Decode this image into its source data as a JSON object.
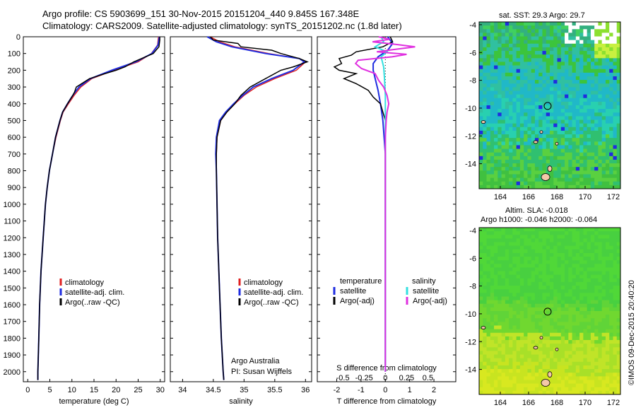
{
  "header": {
    "line1": "Argo profile: CS 5903699_151 30-Nov-2015 20151204_440 9.845S 167.348E",
    "line2": "Climatology: CARS2009. Satellite-adjusted climatology: synTS_20151202.nc (1.8d later)"
  },
  "colors": {
    "climatology": "#e02020",
    "satellite": "#1f2de0",
    "argo": "#000000",
    "sat_s": "#33e0e0",
    "argo_s": "#e030e0"
  },
  "depth_axis": {
    "ticks": [
      "0",
      "100",
      "200",
      "300",
      "400",
      "500",
      "600",
      "700",
      "800",
      "900",
      "1000",
      "1100",
      "1200",
      "1300",
      "1400",
      "1500",
      "1600",
      "1700",
      "1800",
      "1900",
      "2000"
    ]
  },
  "chart_data": [
    {
      "type": "line",
      "id": "temperature",
      "xlabel": "temperature (deg C)",
      "xlim": [
        -1,
        31
      ],
      "ylim": [
        2060,
        0
      ],
      "xticks": [
        "0",
        "5",
        "10",
        "15",
        "20",
        "25",
        "30"
      ],
      "legend": [
        "climatology",
        "satellite-adj. clim.",
        "Argo(..raw -QC)"
      ],
      "series": [
        {
          "name": "climatology",
          "depth": [
            0,
            50,
            100,
            150,
            200,
            250,
            300,
            350,
            400,
            450,
            500,
            600,
            700,
            800,
            900,
            1000,
            1200,
            1400,
            1600,
            1800,
            2000,
            2050
          ],
          "values": [
            29.6,
            29.4,
            28.0,
            25.0,
            19.5,
            14.5,
            12.0,
            10.5,
            9.2,
            8.0,
            7.4,
            6.4,
            5.6,
            4.9,
            4.4,
            4.0,
            3.5,
            3.0,
            2.7,
            2.5,
            2.3,
            2.3
          ]
        },
        {
          "name": "satellite-adj. clim.",
          "depth": [
            0,
            50,
            100,
            150,
            200,
            250,
            300,
            350,
            400,
            450,
            500,
            600,
            700,
            800,
            900,
            1000,
            1200,
            1400,
            1600,
            1800,
            2000,
            2050
          ],
          "values": [
            29.8,
            29.5,
            28.1,
            24.5,
            19.0,
            14.2,
            11.6,
            10.2,
            9.0,
            7.9,
            7.3,
            6.3,
            5.6,
            4.9,
            4.4,
            4.0,
            3.5,
            3.0,
            2.7,
            2.5,
            2.3,
            2.3
          ]
        },
        {
          "name": "Argo(..raw -QC)",
          "depth": [
            0,
            20,
            60,
            100,
            150,
            180,
            200,
            220,
            250,
            300,
            330,
            350,
            400,
            450,
            500,
            600,
            700,
            800,
            900,
            1000,
            1200,
            1400,
            1600,
            1800,
            2000,
            2050
          ],
          "values": [
            29.9,
            29.9,
            29.7,
            28.4,
            24.0,
            22.0,
            20.0,
            17.5,
            14.0,
            11.0,
            10.6,
            10.2,
            9.0,
            7.9,
            7.3,
            6.3,
            5.6,
            4.9,
            4.4,
            4.0,
            3.5,
            3.0,
            2.7,
            2.5,
            2.3,
            2.3
          ]
        }
      ]
    },
    {
      "type": "line",
      "id": "salinity",
      "xlabel": "salinity",
      "xlim": [
        33.8,
        36.1
      ],
      "ylim": [
        2060,
        0
      ],
      "xticks": [
        "34",
        "34.5",
        "35",
        "35.5",
        "36"
      ],
      "legend": [
        "climatology",
        "satellite-adj. clim.",
        "Argo(..raw -QC)"
      ],
      "note1": "Argo Australia",
      "note2": "PI: Susan Wijffels",
      "series": [
        {
          "name": "climatology",
          "depth": [
            0,
            30,
            60,
            100,
            130,
            150,
            200,
            250,
            300,
            350,
            400,
            450,
            500,
            600,
            700,
            800,
            1000,
            1200,
            1400,
            1600,
            1800,
            2000,
            2050
          ],
          "values": [
            34.45,
            34.6,
            34.85,
            35.4,
            35.9,
            36.0,
            35.85,
            35.5,
            35.2,
            35.0,
            34.85,
            34.72,
            34.62,
            34.56,
            34.55,
            34.55,
            34.56,
            34.57,
            34.59,
            34.61,
            34.63,
            34.66,
            34.67
          ]
        },
        {
          "name": "satellite-adj. clim.",
          "depth": [
            0,
            30,
            60,
            100,
            130,
            150,
            200,
            250,
            300,
            350,
            400,
            450,
            500,
            600,
            700,
            800,
            1000,
            1200,
            1400,
            1600,
            1800,
            2000,
            2050
          ],
          "values": [
            34.4,
            34.55,
            34.8,
            35.35,
            35.9,
            35.98,
            35.8,
            35.45,
            35.15,
            34.98,
            34.83,
            34.7,
            34.6,
            34.55,
            34.54,
            34.55,
            34.56,
            34.57,
            34.59,
            34.61,
            34.63,
            34.66,
            34.67
          ]
        },
        {
          "name": "Argo(..raw -QC)",
          "depth": [
            0,
            20,
            40,
            60,
            80,
            100,
            130,
            150,
            180,
            200,
            250,
            300,
            350,
            400,
            450,
            500,
            600,
            700,
            800,
            1000,
            1200,
            1400,
            1600,
            1800,
            2000,
            2050
          ],
          "values": [
            34.45,
            34.5,
            34.9,
            34.95,
            35.45,
            35.6,
            35.9,
            36.03,
            35.8,
            35.6,
            35.35,
            35.1,
            34.95,
            34.85,
            34.72,
            34.62,
            34.56,
            34.55,
            34.55,
            34.56,
            34.57,
            34.59,
            34.61,
            34.63,
            34.66,
            34.67
          ]
        }
      ]
    },
    {
      "type": "line",
      "id": "difference",
      "xlabel": "T difference from climatology",
      "xlabel2": "S difference from climatology",
      "xlim": [
        -2.8,
        2.9
      ],
      "ylim": [
        2060,
        0
      ],
      "xticks": [
        "-2",
        "-1",
        "0",
        "1",
        "2"
      ],
      "sticks": [
        "-0.5",
        "-0.25",
        "0",
        "0.25",
        "0.5"
      ],
      "legend_head_t": "temperature",
      "legend_head_s": "salinity",
      "legend": [
        "satellite",
        "Argo(-adj)",
        "satellite",
        "Argo(-adj)"
      ],
      "series": [
        {
          "name": "T satellite",
          "depth": [
            0,
            40,
            80,
            120,
            160,
            200,
            260,
            320,
            400,
            500,
            700,
            1000,
            1500,
            2000
          ],
          "values": [
            0.1,
            0.3,
            0.1,
            -0.3,
            -0.5,
            -0.5,
            -0.4,
            -0.3,
            -0.2,
            -0.1,
            0,
            0,
            0,
            0
          ]
        },
        {
          "name": "T Argo(-adj)",
          "depth": [
            0,
            30,
            60,
            90,
            110,
            130,
            160,
            180,
            200,
            220,
            250,
            280,
            320,
            360,
            400,
            450,
            500,
            600,
            800,
            1000,
            1500,
            2000
          ],
          "values": [
            0.2,
            0.3,
            -0.1,
            -1.2,
            -1.4,
            -1.9,
            -1.8,
            -2.1,
            -1.9,
            -1.2,
            -1.7,
            -1.2,
            -0.7,
            -0.5,
            -0.2,
            -0.1,
            0,
            0,
            0,
            0,
            0,
            0
          ]
        },
        {
          "name": "S satellite",
          "depth": [
            0,
            30,
            60,
            90,
            120,
            180,
            250,
            350,
            500,
            800,
            1200,
            2000
          ],
          "values": [
            -0.05,
            -0.02,
            -0.12,
            0.02,
            -0.05,
            -0.02,
            -0.01,
            0.0,
            0.0,
            0.0,
            0.0,
            0.0
          ]
        },
        {
          "name": "S Argo(-adj)",
          "depth": [
            0,
            15,
            30,
            45,
            60,
            75,
            90,
            105,
            120,
            140,
            160,
            190,
            220,
            260,
            300,
            350,
            400,
            450,
            500,
            600,
            800,
            1200,
            2000
          ],
          "values": [
            -0.08,
            0.05,
            -0.15,
            0.12,
            0.35,
            0.12,
            -0.1,
            0.25,
            0.08,
            -0.32,
            -0.35,
            -0.28,
            -0.12,
            -0.08,
            -0.02,
            0.02,
            0.04,
            0.02,
            0.01,
            0.0,
            0.0,
            0.0,
            0.0
          ]
        }
      ]
    },
    {
      "type": "heatmap",
      "id": "sst_map",
      "title": "sat. SST: 29.3 Argo: 29.7",
      "xticks": [
        "164",
        "166",
        "168",
        "170",
        "172"
      ],
      "yticks": [
        "-4",
        "-6",
        "-8",
        "-10",
        "-12",
        "-14"
      ],
      "lon_range": [
        162.5,
        172.5
      ],
      "lat_range": [
        -15.8,
        -3.8
      ],
      "argo_position": [
        167.348,
        -9.845
      ]
    },
    {
      "type": "heatmap",
      "id": "sla_map",
      "title1": "Altim. SLA: -0.018",
      "title2": "Argo h1000: -0.046 h2000: -0.064",
      "xticks": [
        "164",
        "166",
        "168",
        "170",
        "172"
      ],
      "yticks": [
        "-4",
        "-6",
        "-8",
        "-10",
        "-12",
        "-14"
      ],
      "lon_range": [
        162.5,
        172.5
      ],
      "lat_range": [
        -15.8,
        -3.8
      ],
      "argo_position": [
        167.348,
        -9.845
      ]
    }
  ],
  "credit": "©IMOS 09-Dec-2015 20:40:20"
}
